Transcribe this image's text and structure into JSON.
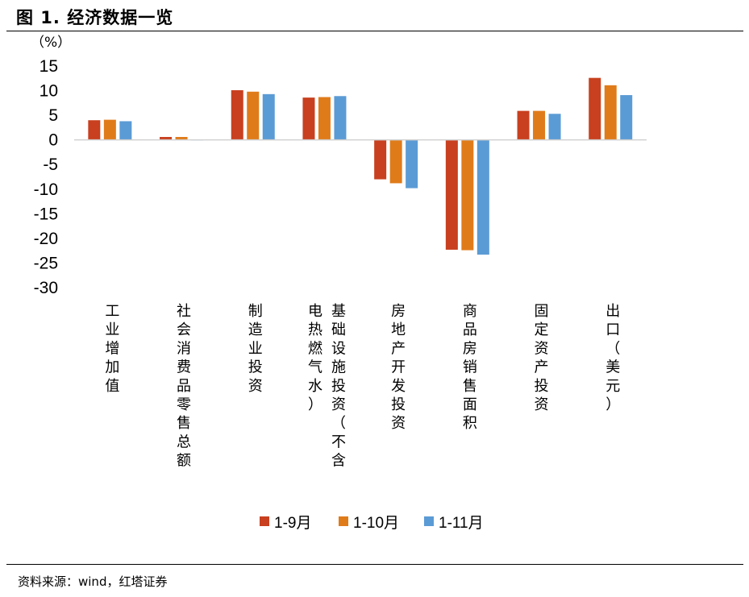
{
  "header": {
    "title": "图 1. 经济数据一览"
  },
  "footer": {
    "source": "资料来源：wind，红塔证券"
  },
  "chart_data": {
    "type": "bar",
    "title": "",
    "xlabel": "",
    "ylabel": "（%）",
    "ylim": [
      -30,
      15
    ],
    "yticks": [
      15,
      10,
      5,
      0,
      -5,
      -10,
      -15,
      -20,
      -25,
      -30
    ],
    "legend_position": "bottom",
    "grid": false,
    "categories": [
      "工业增加值",
      "社会消费品零售总额",
      "制造业投资",
      "基础设施投资（不含电热燃气水）",
      "房地产开发投资",
      "商品房销售面积",
      "固定资产投资",
      "出口（美元）"
    ],
    "series": [
      {
        "name": "1-9月",
        "color": "#C8401F",
        "values": [
          4.0,
          0.6,
          10.1,
          8.6,
          -8.0,
          -22.3,
          5.9,
          12.6
        ]
      },
      {
        "name": "1-10月",
        "color": "#E07B1A",
        "values": [
          4.1,
          0.6,
          9.8,
          8.7,
          -8.8,
          -22.4,
          5.9,
          11.1
        ]
      },
      {
        "name": "1-11月",
        "color": "#5B9BD5",
        "values": [
          3.8,
          0.0,
          9.3,
          8.9,
          -9.8,
          -23.3,
          5.3,
          9.1
        ]
      }
    ]
  }
}
